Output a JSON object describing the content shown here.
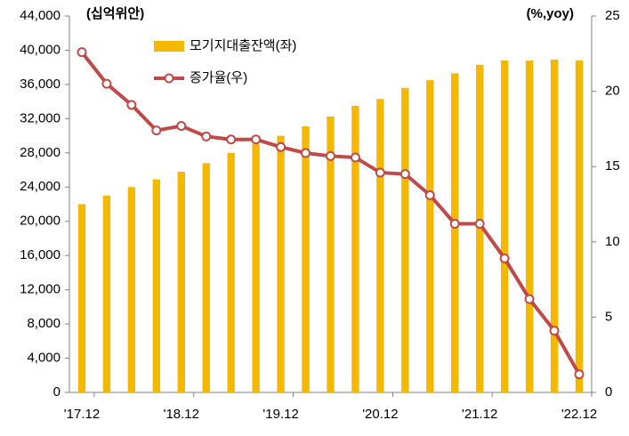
{
  "chart_data": {
    "type": "bar_line",
    "y_label": "(십억위안)",
    "y2_label": "(%,yoy)",
    "categories": [
      "'17.12",
      null,
      null,
      null,
      "'18.12",
      null,
      null,
      null,
      "'19.12",
      null,
      null,
      null,
      "'20.12",
      null,
      null,
      null,
      "'21.12",
      null,
      null,
      null,
      "'22.12"
    ],
    "series": [
      {
        "name": "모기지대출잔액(좌)",
        "color": "#f5b800",
        "kind": "bar",
        "values": [
          22000,
          23000,
          24000,
          24900,
          25800,
          26800,
          28000,
          29000,
          30000,
          31100,
          32250,
          33500,
          34300,
          35600,
          36500,
          37300,
          38300,
          38800,
          38800,
          38900,
          38800
        ]
      },
      {
        "name": "증가율(우)",
        "color": "#be4b48",
        "kind": "line",
        "axis": "y2",
        "values": [
          22.6,
          20.5,
          19.1,
          17.4,
          17.7,
          17.0,
          16.8,
          16.8,
          16.3,
          15.9,
          15.7,
          15.6,
          14.6,
          14.5,
          13.1,
          11.2,
          11.2,
          8.9,
          6.2,
          4.1,
          1.2
        ]
      }
    ],
    "ylim": [
      0,
      44000
    ],
    "yticks": [
      0,
      {
        "value": 4000,
        "label": "4,000"
      },
      {
        "value": 8000,
        "label": "8,000"
      },
      {
        "value": 12000,
        "label": "12,000"
      },
      {
        "value": 16000,
        "label": "16,000"
      },
      {
        "value": 20000,
        "label": "20,000"
      },
      {
        "value": 24000,
        "label": "24,000"
      },
      {
        "value": 28000,
        "label": "28,000"
      },
      {
        "value": 32000,
        "label": "32,000"
      },
      {
        "value": 36000,
        "label": "36,000"
      },
      {
        "value": 40000,
        "label": "40,000"
      },
      {
        "value": 44000,
        "label": "44,000"
      }
    ],
    "y2lim": [
      0,
      25
    ],
    "y2ticks": [
      0,
      5,
      10,
      15,
      20,
      25
    ],
    "grid": false
  }
}
